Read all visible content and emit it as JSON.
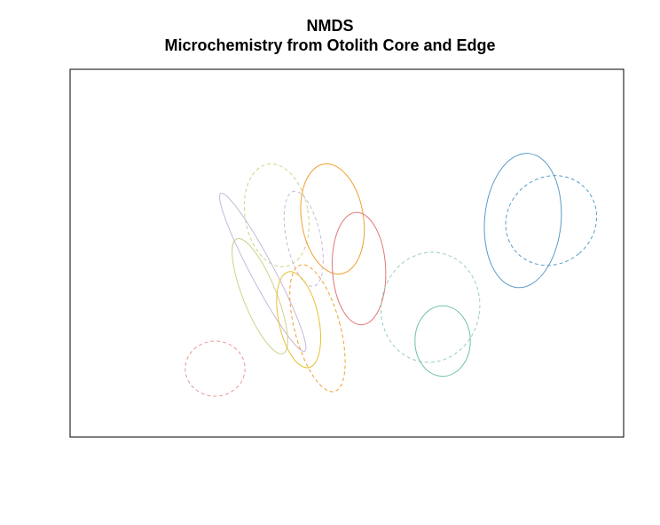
{
  "chart_data": {
    "type": "ellipse",
    "title": "NMDS",
    "subtitle": "Microchemistry from Otolith Core and Edge",
    "xlabel": "",
    "ylabel": "",
    "axes_shown": false,
    "grid": false,
    "legend": "none",
    "ellipses": [
      {
        "cx": 0.373,
        "cy": 0.603,
        "rx": 0.057,
        "ry": 0.141,
        "angle": -10,
        "color": "#ccd48a",
        "style": "dashed"
      },
      {
        "cx": 0.474,
        "cy": 0.593,
        "rx": 0.056,
        "ry": 0.151,
        "angle": -9,
        "color": "#f0a030",
        "style": "solid"
      },
      {
        "cx": 0.422,
        "cy": 0.539,
        "rx": 0.031,
        "ry": 0.132,
        "angle": -12,
        "color": "#c8b8d8",
        "style": "dashed"
      },
      {
        "cx": 0.348,
        "cy": 0.448,
        "rx": 0.021,
        "ry": 0.243,
        "angle": -28,
        "color": "#c8b8d8",
        "style": "solid"
      },
      {
        "cx": 0.522,
        "cy": 0.458,
        "rx": 0.048,
        "ry": 0.153,
        "angle": -3,
        "color": "#e07878",
        "style": "solid"
      },
      {
        "cx": 0.343,
        "cy": 0.383,
        "rx": 0.03,
        "ry": 0.168,
        "angle": -22,
        "color": "#ccd48a",
        "style": "solid"
      },
      {
        "cx": 0.413,
        "cy": 0.319,
        "rx": 0.036,
        "ry": 0.133,
        "angle": -12,
        "color": "#e6c030",
        "style": "solid"
      },
      {
        "cx": 0.447,
        "cy": 0.296,
        "rx": 0.041,
        "ry": 0.178,
        "angle": -15,
        "color": "#f0a030",
        "style": "dashed"
      },
      {
        "cx": 0.262,
        "cy": 0.186,
        "rx": 0.054,
        "ry": 0.075,
        "angle": 0,
        "color": "#e89898",
        "style": "dashed"
      },
      {
        "cx": 0.651,
        "cy": 0.353,
        "rx": 0.089,
        "ry": 0.15,
        "angle": 10,
        "color": "#9ad0c0",
        "style": "dashed"
      },
      {
        "cx": 0.673,
        "cy": 0.261,
        "rx": 0.05,
        "ry": 0.096,
        "angle": 0,
        "color": "#70c0a8",
        "style": "solid"
      },
      {
        "cx": 0.818,
        "cy": 0.589,
        "rx": 0.069,
        "ry": 0.183,
        "angle": 5,
        "color": "#5a9cc8",
        "style": "solid"
      },
      {
        "cx": 0.869,
        "cy": 0.589,
        "rx": 0.078,
        "ry": 0.128,
        "angle": 50,
        "color": "#5a9cc8",
        "style": "dashed"
      }
    ]
  }
}
